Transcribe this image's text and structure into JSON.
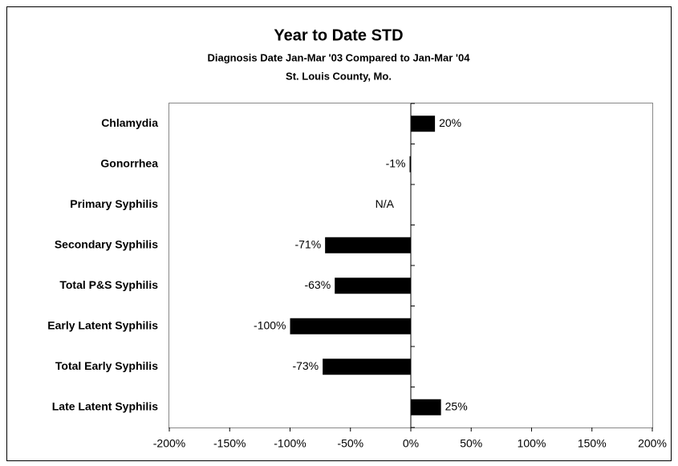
{
  "chart_data": {
    "type": "bar",
    "orientation": "horizontal",
    "title": "Year to Date STD",
    "subtitle": [
      "Diagnosis Date Jan-Mar '03 Compared to Jan-Mar '04",
      "St. Louis County, Mo."
    ],
    "categories": [
      "Chlamydia",
      "Gonorrhea",
      "Primary Syphilis",
      "Secondary Syphilis",
      "Total P&S Syphilis",
      "Early Latent Syphilis",
      "Total Early Syphilis",
      "Late Latent Syphilis"
    ],
    "values": [
      20,
      -1,
      null,
      -71,
      -63,
      -100,
      -73,
      25
    ],
    "value_labels": [
      "20%",
      "-1%",
      "N/A",
      "-71%",
      "-63%",
      "-100%",
      "-73%",
      "25%"
    ],
    "color": "#000000",
    "xlim": [
      -200,
      200
    ],
    "xticks": [
      {
        "value": -200,
        "label": "-200%"
      },
      {
        "value": -150,
        "label": "-150%"
      },
      {
        "value": -100,
        "label": "-100%"
      },
      {
        "value": -50,
        "label": "-50%"
      },
      {
        "value": 0,
        "label": "0%"
      },
      {
        "value": 50,
        "label": "50%"
      },
      {
        "value": 100,
        "label": "100%"
      },
      {
        "value": 150,
        "label": "150%"
      },
      {
        "value": 200,
        "label": "200%"
      }
    ],
    "grid": false
  }
}
